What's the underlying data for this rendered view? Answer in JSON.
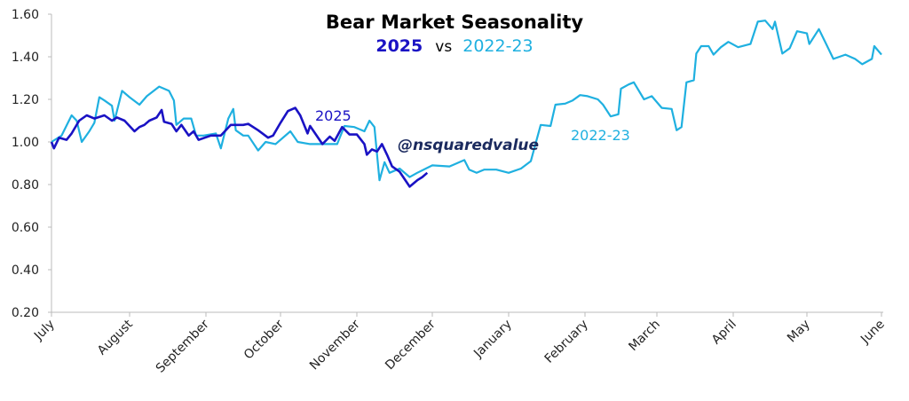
{
  "chart_data": {
    "type": "line",
    "title": "Bear Market Seasonality",
    "subtitle": {
      "part1": "2025",
      "vs": "vs",
      "part2": "2022-23"
    },
    "watermark": "@nsquaredvalue",
    "xlabel": "",
    "ylabel": "",
    "ylim": [
      0.2,
      1.6
    ],
    "yticks": [
      "0.20",
      "0.40",
      "0.60",
      "0.80",
      "1.00",
      "1.20",
      "1.40",
      "1.60"
    ],
    "xticks": [
      "July",
      "August",
      "September",
      "October",
      "November",
      "December",
      "January",
      "February",
      "March",
      "April",
      "May",
      "June"
    ],
    "grid": false,
    "colors": {
      "s2025": "#1a12c4",
      "s2022": "#1fb0e0",
      "watermark": "#1b2a5e"
    },
    "series": [
      {
        "name": "2022-23",
        "label": "2022-23",
        "points": [
          [
            "07-01",
            1.0
          ],
          [
            "07-05",
            1.03
          ],
          [
            "07-09",
            1.125
          ],
          [
            "07-11",
            1.1
          ],
          [
            "07-13",
            1.0
          ],
          [
            "07-16",
            1.05
          ],
          [
            "07-18",
            1.09
          ],
          [
            "07-20",
            1.21
          ],
          [
            "07-22",
            1.195
          ],
          [
            "07-25",
            1.17
          ],
          [
            "07-26",
            1.1
          ],
          [
            "07-29",
            1.24
          ],
          [
            "08-01",
            1.21
          ],
          [
            "08-05",
            1.175
          ],
          [
            "08-08",
            1.215
          ],
          [
            "08-13",
            1.26
          ],
          [
            "08-17",
            1.24
          ],
          [
            "08-19",
            1.195
          ],
          [
            "08-20",
            1.08
          ],
          [
            "08-23",
            1.11
          ],
          [
            "08-26",
            1.11
          ],
          [
            "08-28",
            1.03
          ],
          [
            "08-31",
            1.03
          ],
          [
            "09-05",
            1.04
          ],
          [
            "09-07",
            0.97
          ],
          [
            "09-10",
            1.11
          ],
          [
            "09-12",
            1.155
          ],
          [
            "09-13",
            1.055
          ],
          [
            "09-16",
            1.03
          ],
          [
            "09-18",
            1.03
          ],
          [
            "09-22",
            0.96
          ],
          [
            "09-25",
            1.0
          ],
          [
            "09-29",
            0.99
          ],
          [
            "10-05",
            1.05
          ],
          [
            "10-08",
            1.0
          ],
          [
            "10-13",
            0.99
          ],
          [
            "10-19",
            0.99
          ],
          [
            "10-24",
            0.99
          ],
          [
            "10-27",
            1.075
          ],
          [
            "10-31",
            1.07
          ],
          [
            "11-04",
            1.05
          ],
          [
            "11-06",
            1.1
          ],
          [
            "11-08",
            1.07
          ],
          [
            "11-10",
            0.82
          ],
          [
            "11-12",
            0.905
          ],
          [
            "11-14",
            0.855
          ],
          [
            "11-18",
            0.875
          ],
          [
            "11-22",
            0.835
          ],
          [
            "11-25",
            0.855
          ],
          [
            "12-01",
            0.89
          ],
          [
            "12-08",
            0.885
          ],
          [
            "12-14",
            0.915
          ],
          [
            "12-16",
            0.87
          ],
          [
            "12-19",
            0.855
          ],
          [
            "12-22",
            0.87
          ],
          [
            "12-27",
            0.87
          ],
          [
            "01-01",
            0.855
          ],
          [
            "01-06",
            0.875
          ],
          [
            "01-10",
            0.91
          ],
          [
            "01-14",
            1.08
          ],
          [
            "01-18",
            1.075
          ],
          [
            "01-20",
            1.175
          ],
          [
            "01-24",
            1.18
          ],
          [
            "01-27",
            1.195
          ],
          [
            "01-30",
            1.22
          ],
          [
            "02-02",
            1.215
          ],
          [
            "02-06",
            1.2
          ],
          [
            "02-08",
            1.175
          ],
          [
            "02-11",
            1.12
          ],
          [
            "02-14",
            1.13
          ],
          [
            "02-15",
            1.25
          ],
          [
            "02-18",
            1.27
          ],
          [
            "02-20",
            1.28
          ],
          [
            "02-24",
            1.2
          ],
          [
            "02-27",
            1.215
          ],
          [
            "03-03",
            1.16
          ],
          [
            "03-07",
            1.155
          ],
          [
            "03-09",
            1.055
          ],
          [
            "03-11",
            1.07
          ],
          [
            "03-13",
            1.28
          ],
          [
            "03-16",
            1.29
          ],
          [
            "03-17",
            1.415
          ],
          [
            "03-19",
            1.45
          ],
          [
            "03-22",
            1.45
          ],
          [
            "03-24",
            1.41
          ],
          [
            "03-27",
            1.445
          ],
          [
            "03-30",
            1.47
          ],
          [
            "04-03",
            1.445
          ],
          [
            "04-08",
            1.46
          ],
          [
            "04-11",
            1.565
          ],
          [
            "04-14",
            1.57
          ],
          [
            "04-17",
            1.53
          ],
          [
            "04-18",
            1.565
          ],
          [
            "04-21",
            1.415
          ],
          [
            "04-24",
            1.44
          ],
          [
            "04-27",
            1.52
          ],
          [
            "05-01",
            1.51
          ],
          [
            "05-02",
            1.46
          ],
          [
            "05-06",
            1.53
          ],
          [
            "05-09",
            1.46
          ],
          [
            "05-12",
            1.39
          ],
          [
            "05-17",
            1.41
          ],
          [
            "05-21",
            1.39
          ],
          [
            "05-24",
            1.365
          ],
          [
            "05-28",
            1.39
          ],
          [
            "05-29",
            1.45
          ],
          [
            "06-01",
            1.41
          ]
        ]
      },
      {
        "name": "2025",
        "label": "2025",
        "points": [
          [
            "07-01",
            1.0
          ],
          [
            "07-02",
            0.97
          ],
          [
            "07-04",
            1.02
          ],
          [
            "07-07",
            1.01
          ],
          [
            "07-09",
            1.04
          ],
          [
            "07-12",
            1.1
          ],
          [
            "07-15",
            1.125
          ],
          [
            "07-18",
            1.11
          ],
          [
            "07-22",
            1.125
          ],
          [
            "07-25",
            1.1
          ],
          [
            "07-27",
            1.115
          ],
          [
            "07-30",
            1.1
          ],
          [
            "08-03",
            1.05
          ],
          [
            "08-05",
            1.07
          ],
          [
            "08-07",
            1.08
          ],
          [
            "08-09",
            1.1
          ],
          [
            "08-12",
            1.115
          ],
          [
            "08-14",
            1.15
          ],
          [
            "08-15",
            1.095
          ],
          [
            "08-18",
            1.085
          ],
          [
            "08-20",
            1.05
          ],
          [
            "08-22",
            1.08
          ],
          [
            "08-25",
            1.03
          ],
          [
            "08-27",
            1.05
          ],
          [
            "08-29",
            1.01
          ],
          [
            "09-03",
            1.03
          ],
          [
            "09-07",
            1.03
          ],
          [
            "09-11",
            1.08
          ],
          [
            "09-16",
            1.08
          ],
          [
            "09-18",
            1.085
          ],
          [
            "09-22",
            1.055
          ],
          [
            "09-26",
            1.02
          ],
          [
            "09-28",
            1.03
          ],
          [
            "10-01",
            1.09
          ],
          [
            "10-04",
            1.145
          ],
          [
            "10-07",
            1.16
          ],
          [
            "10-09",
            1.125
          ],
          [
            "10-12",
            1.04
          ],
          [
            "10-13",
            1.075
          ],
          [
            "10-18",
            0.99
          ],
          [
            "10-21",
            1.025
          ],
          [
            "10-23",
            1.005
          ],
          [
            "10-26",
            1.07
          ],
          [
            "10-29",
            1.035
          ],
          [
            "11-01",
            1.035
          ],
          [
            "11-04",
            0.99
          ],
          [
            "11-05",
            0.94
          ],
          [
            "11-07",
            0.965
          ],
          [
            "11-09",
            0.955
          ],
          [
            "11-11",
            0.99
          ],
          [
            "11-13",
            0.94
          ],
          [
            "11-15",
            0.885
          ],
          [
            "11-18",
            0.86
          ],
          [
            "11-22",
            0.79
          ],
          [
            "11-25",
            0.82
          ],
          [
            "11-27",
            0.835
          ],
          [
            "11-29",
            0.855
          ]
        ]
      }
    ]
  }
}
